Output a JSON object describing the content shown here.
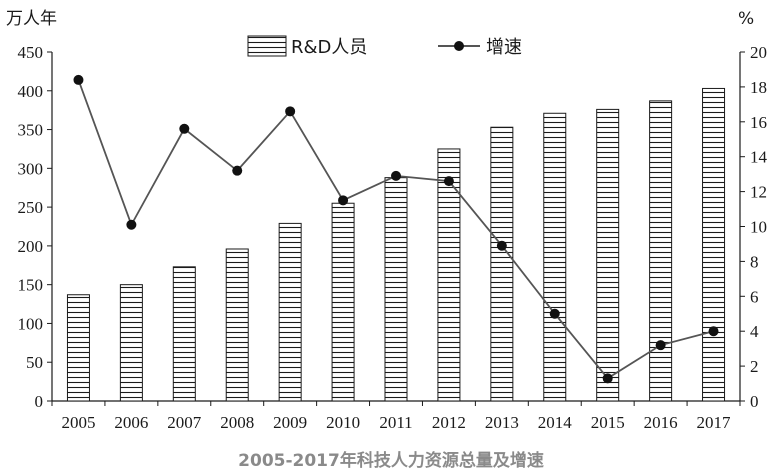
{
  "chart_data": {
    "type": "bar",
    "categories": [
      "2005",
      "2006",
      "2007",
      "2008",
      "2009",
      "2010",
      "2011",
      "2012",
      "2013",
      "2014",
      "2015",
      "2016",
      "2017"
    ],
    "series": [
      {
        "name": "R&D人员",
        "type": "bar",
        "axis": "left",
        "values": [
          137,
          150,
          173,
          196,
          229,
          255,
          288,
          325,
          353,
          371,
          376,
          387,
          403
        ]
      },
      {
        "name": "增速",
        "type": "line",
        "axis": "right",
        "values": [
          18.4,
          10.1,
          15.6,
          13.2,
          16.6,
          11.5,
          12.9,
          12.6,
          8.9,
          5.0,
          1.3,
          3.2,
          4.0
        ]
      }
    ],
    "y_left": {
      "unit": "万人年",
      "range": [
        0,
        450
      ],
      "ticks": [
        "0",
        "50",
        "100",
        "150",
        "200",
        "250",
        "300",
        "350",
        "400",
        "450"
      ]
    },
    "y_right": {
      "unit": "%",
      "range": [
        0,
        20
      ],
      "ticks": [
        "0",
        "2",
        "4",
        "6",
        "8",
        "10",
        "12",
        "14",
        "16",
        "18",
        "20"
      ]
    },
    "title": "2005-2017年科技人力资源总量及增速",
    "legend_position": "top-center",
    "grid": false,
    "bar_fill": "horizontal-stripes",
    "colors": {
      "bar_stroke": "#1a1a1a",
      "line": "#555555",
      "marker": "#111111",
      "caption": "#8a8a8a"
    }
  }
}
